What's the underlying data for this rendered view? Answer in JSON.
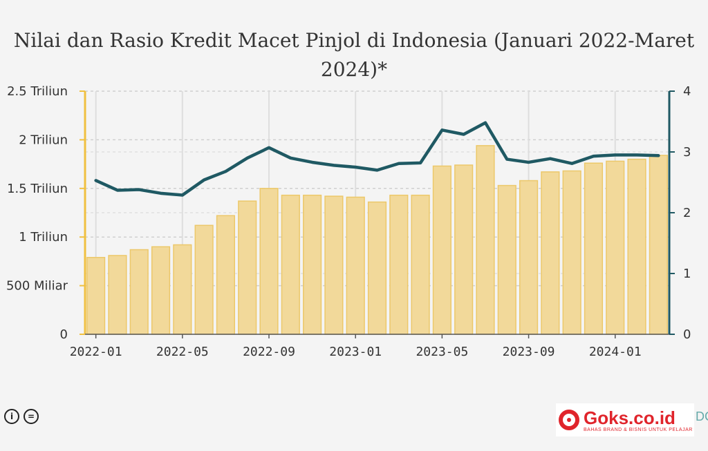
{
  "chart_data": {
    "type": "bar",
    "title": "Nilai dan Rasio Kredit Macet Pinjol di Indonesia (Januari 2022-Maret 2024)*",
    "x": [
      "2022-01",
      "2022-02",
      "2022-03",
      "2022-04",
      "2022-05",
      "2022-06",
      "2022-07",
      "2022-08",
      "2022-09",
      "2022-10",
      "2022-11",
      "2022-12",
      "2023-01",
      "2023-02",
      "2023-03",
      "2023-04",
      "2023-05",
      "2023-06",
      "2023-07",
      "2023-08",
      "2023-09",
      "2023-10",
      "2023-11",
      "2023-12",
      "2024-01",
      "2024-02",
      "2024-03"
    ],
    "x_tick_labels": [
      "2022-01",
      "2022-05",
      "2022-09",
      "2023-01",
      "2023-05",
      "2023-09",
      "2024-01"
    ],
    "series": [
      {
        "axis": "left",
        "kind": "bar",
        "color": "#f2d99a",
        "values": [
          0.79,
          0.81,
          0.87,
          0.9,
          0.92,
          1.12,
          1.22,
          1.37,
          1.5,
          1.43,
          1.43,
          1.42,
          1.41,
          1.36,
          1.43,
          1.43,
          1.73,
          1.74,
          1.94,
          1.53,
          1.58,
          1.67,
          1.68,
          1.76,
          1.78,
          1.8,
          1.84
        ]
      },
      {
        "axis": "right",
        "kind": "line",
        "color": "#1f5963",
        "values": [
          2.53,
          2.37,
          2.38,
          2.32,
          2.29,
          2.54,
          2.68,
          2.9,
          3.07,
          2.9,
          2.83,
          2.78,
          2.75,
          2.7,
          2.81,
          2.82,
          3.36,
          3.29,
          3.48,
          2.88,
          2.83,
          2.89,
          2.81,
          2.93,
          2.95,
          2.95,
          2.94
        ]
      }
    ],
    "y_left": {
      "ylim": [
        0,
        2.5
      ],
      "unit": "Triliun",
      "tick_labels": [
        "0",
        "500 Miliar",
        "1 Triliun",
        "1.5 Triliun",
        "2 Triliun",
        "2.5 Triliun"
      ]
    },
    "y_right": {
      "ylim": [
        0,
        4
      ],
      "tick_labels": [
        "0",
        "1",
        "2",
        "3",
        "4"
      ]
    },
    "grid": true,
    "axis_colors": {
      "left": "#f0c040",
      "right": "#1f5963"
    }
  },
  "footer": {
    "license_icons": [
      "cc-by-icon",
      "cc-nd-icon"
    ],
    "logo_name": "Goks.co.id",
    "logo_tagline": "BAHAS BRAND & BISNIS UNTUK PELAJAR",
    "edge_fragment": "DC"
  }
}
